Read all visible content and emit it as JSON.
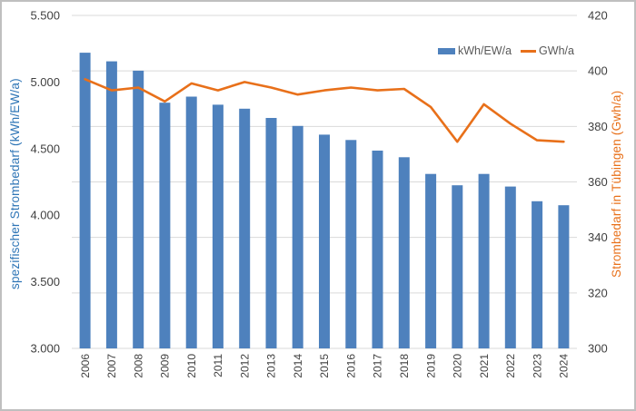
{
  "chart_data": {
    "type": "combo-bar-line",
    "categories": [
      "2006",
      "2007",
      "2008",
      "2009",
      "2010",
      "2011",
      "2012",
      "2013",
      "2014",
      "2015",
      "2016",
      "2017",
      "2018",
      "2019",
      "2020",
      "2021",
      "2022",
      "2023",
      "2024"
    ],
    "series": [
      {
        "name": "kWh/EW/a",
        "type": "bar",
        "axis": "left",
        "color": "#4e81bd",
        "values": [
          5220,
          5155,
          5085,
          4845,
          4890,
          4830,
          4800,
          4730,
          4670,
          4605,
          4565,
          4485,
          4435,
          4310,
          4225,
          4310,
          4215,
          4105,
          4075
        ]
      },
      {
        "name": "GWh/a",
        "type": "line",
        "axis": "right",
        "color": "#e8701a",
        "values": [
          397,
          393,
          394,
          389,
          395.5,
          393,
          396,
          394,
          391.5,
          393,
          394,
          393,
          393.5,
          387,
          374.5,
          388,
          381,
          375,
          374.5
        ]
      }
    ],
    "left_axis": {
      "title": "spezifischer Strombedarf (kWh/EW/a)",
      "title_color": "#2e75b6",
      "min": 3000,
      "max": 5500,
      "step": 500,
      "tick_labels": [
        "5.500",
        "5.000",
        "4.500",
        "4.000",
        "3.500",
        "3.000"
      ]
    },
    "right_axis": {
      "title": "Strombedarf in Tübingen (Gwh/a)",
      "title_color": "#e8701a",
      "min": 300,
      "max": 420,
      "step": 20,
      "tick_labels": [
        "420",
        "400",
        "380",
        "360",
        "340",
        "320",
        "300"
      ]
    },
    "legend": {
      "position": "top-right-inside",
      "items": [
        {
          "label": "kWh/EW/a",
          "swatch": "bar",
          "color": "#4e81bd"
        },
        {
          "label": "GWh/a",
          "swatch": "line",
          "color": "#e8701a"
        }
      ]
    },
    "grid": {
      "horizontal": true,
      "aligned_to": "right-axis",
      "color": "#d9d9d9"
    },
    "tick_label_color": "#404040"
  }
}
